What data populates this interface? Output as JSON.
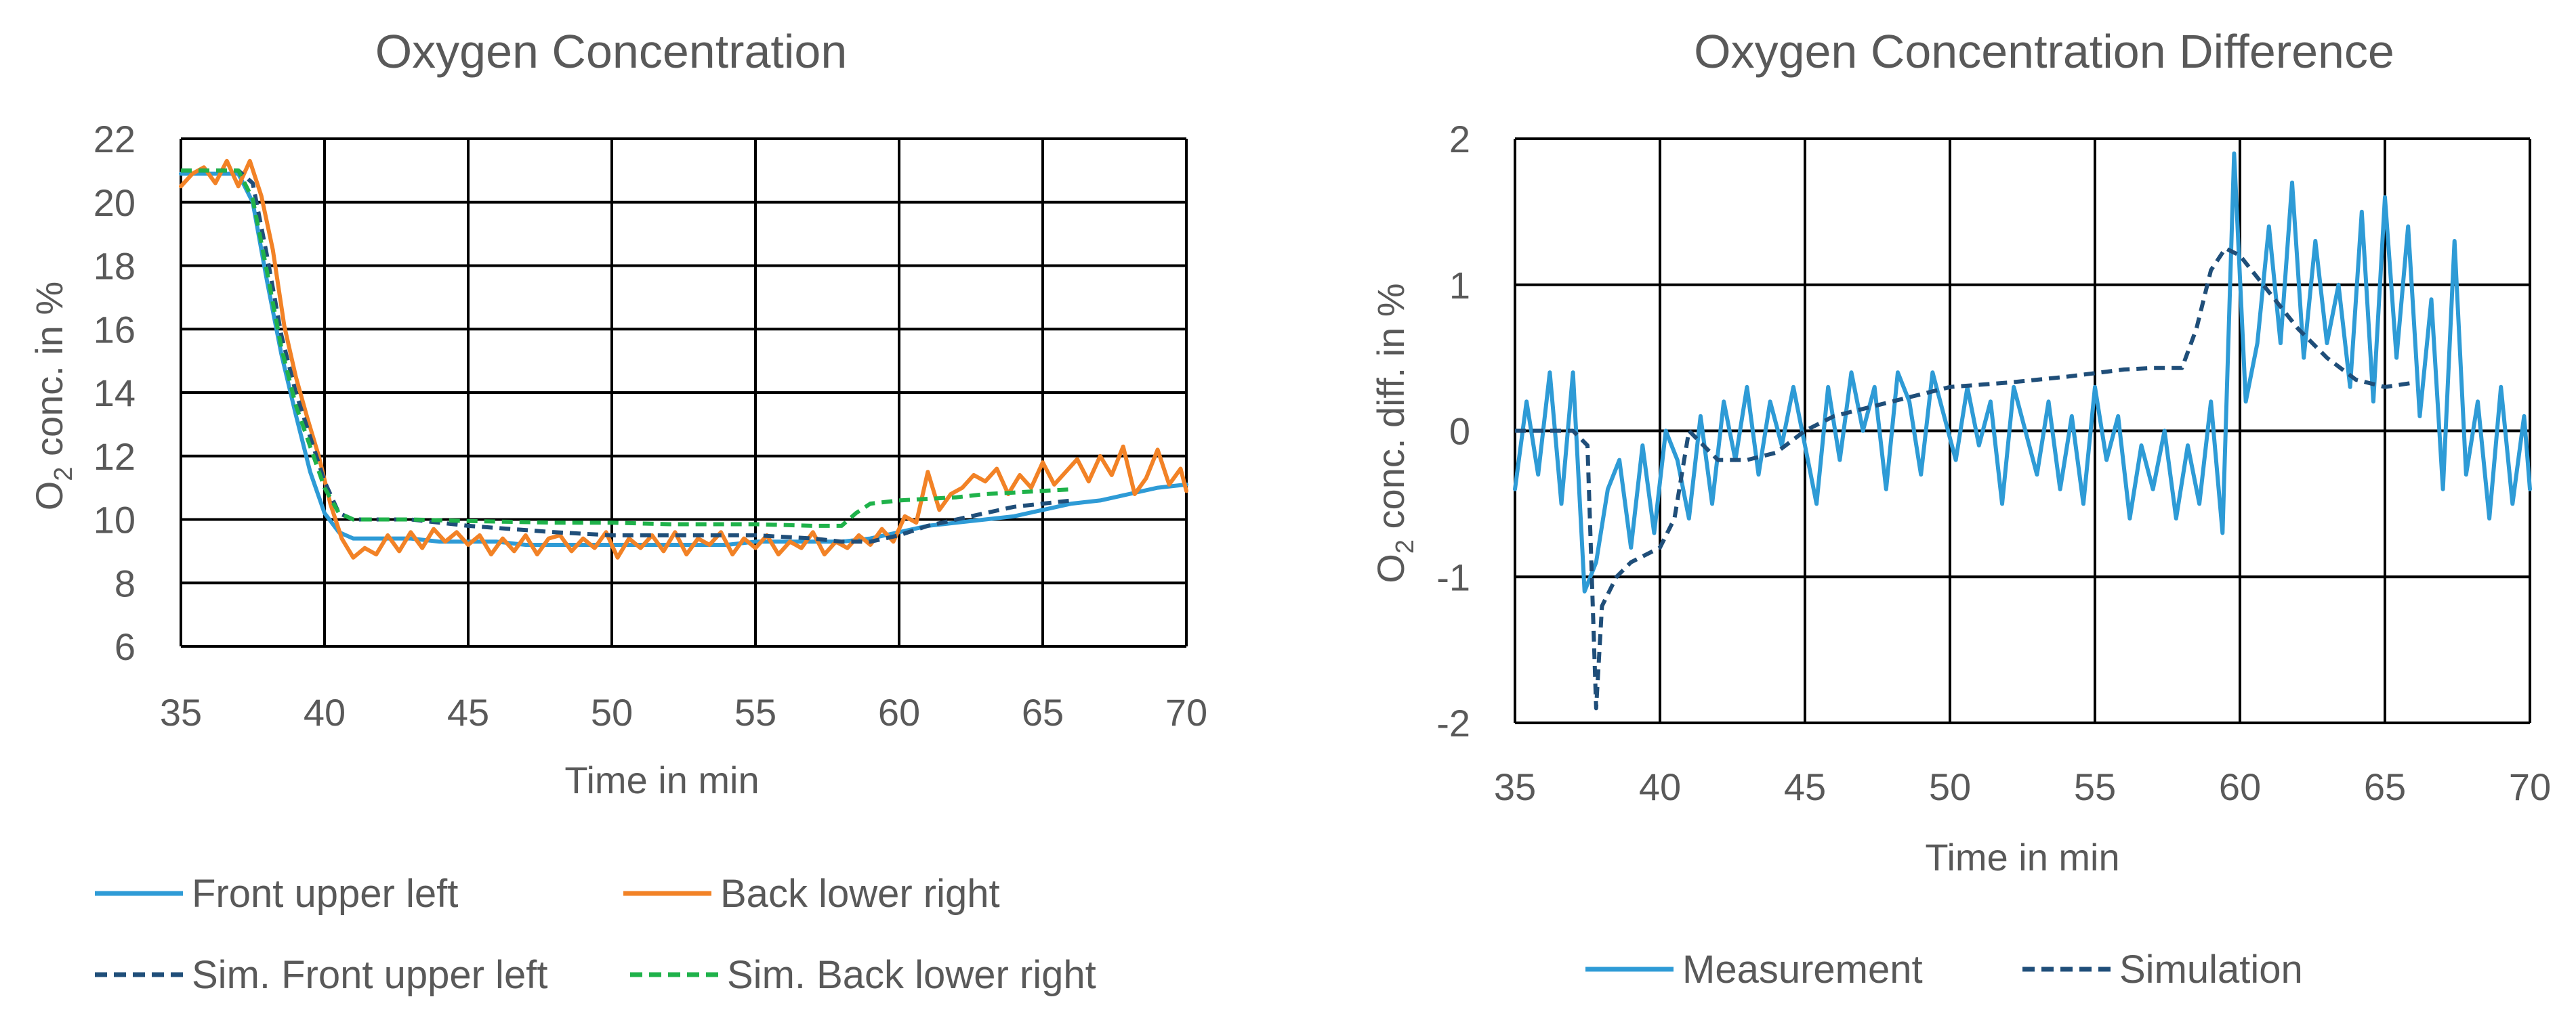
{
  "chart_data": [
    {
      "type": "line",
      "title": "Oxygen Concentration",
      "xlabel": "Time in min",
      "ylabel_main": "O",
      "ylabel_sub": "2",
      "ylabel_rest": " conc. in %",
      "xlim": [
        35,
        70
      ],
      "ylim": [
        6,
        22
      ],
      "xticks": [
        35,
        40,
        45,
        50,
        55,
        60,
        65,
        70
      ],
      "yticks": [
        6,
        8,
        10,
        12,
        14,
        16,
        18,
        20,
        22
      ],
      "grid": true,
      "legend_position": "bottom",
      "series": [
        {
          "name": "Front upper left",
          "color": "#2e9bd6",
          "dash": false,
          "x": [
            35,
            36,
            37,
            37.5,
            38,
            38.5,
            39,
            39.5,
            40,
            40.5,
            41,
            42,
            43,
            44,
            45,
            46,
            47,
            48,
            49,
            50,
            51,
            52,
            53,
            54,
            55,
            56,
            57,
            58,
            59,
            60,
            61,
            62,
            63,
            64,
            65,
            66,
            67,
            68,
            69,
            70
          ],
          "y": [
            20.9,
            20.9,
            20.9,
            20,
            17.5,
            15.2,
            13.3,
            11.5,
            10.2,
            9.6,
            9.4,
            9.4,
            9.4,
            9.3,
            9.3,
            9.3,
            9.2,
            9.2,
            9.2,
            9.2,
            9.2,
            9.2,
            9.2,
            9.2,
            9.3,
            9.3,
            9.3,
            9.3,
            9.4,
            9.6,
            9.8,
            9.9,
            10,
            10.1,
            10.3,
            10.5,
            10.6,
            10.8,
            11,
            11.1
          ]
        },
        {
          "name": "Back lower right",
          "color": "#f28226",
          "dash": false,
          "x": [
            35,
            35.4,
            35.8,
            36.2,
            36.6,
            37,
            37.4,
            37.8,
            38.2,
            38.6,
            39,
            39.4,
            39.8,
            40.2,
            40.6,
            41,
            41.4,
            41.8,
            42.2,
            42.6,
            43,
            43.4,
            43.8,
            44.2,
            44.6,
            45,
            45.4,
            45.8,
            46.2,
            46.6,
            47,
            47.4,
            47.8,
            48.2,
            48.6,
            49,
            49.4,
            49.8,
            50.2,
            50.6,
            51,
            51.4,
            51.8,
            52.2,
            52.6,
            53,
            53.4,
            53.8,
            54.2,
            54.6,
            55,
            55.4,
            55.8,
            56.2,
            56.6,
            57,
            57.4,
            57.8,
            58.2,
            58.6,
            59,
            59.4,
            59.8,
            60.2,
            60.6,
            61,
            61.4,
            61.8,
            62.2,
            62.6,
            63,
            63.4,
            63.8,
            64.2,
            64.6,
            65,
            65.4,
            65.8,
            66.2,
            66.6,
            67,
            67.4,
            67.8,
            68.2,
            68.6,
            69,
            69.4,
            69.8,
            70
          ],
          "y": [
            20.5,
            20.9,
            21.1,
            20.6,
            21.3,
            20.5,
            21.3,
            20.2,
            18.5,
            16.1,
            14.5,
            13.2,
            12,
            10.5,
            9.4,
            8.8,
            9.1,
            8.9,
            9.5,
            9,
            9.6,
            9.1,
            9.7,
            9.3,
            9.6,
            9.2,
            9.5,
            8.9,
            9.4,
            9,
            9.5,
            8.9,
            9.4,
            9.5,
            9,
            9.4,
            9.1,
            9.6,
            8.8,
            9.4,
            9.1,
            9.5,
            9,
            9.6,
            8.9,
            9.4,
            9.2,
            9.6,
            8.9,
            9.4,
            9.1,
            9.5,
            8.9,
            9.3,
            9.1,
            9.6,
            8.9,
            9.3,
            9.1,
            9.5,
            9.2,
            9.7,
            9.3,
            10.1,
            9.9,
            11.5,
            10.3,
            10.8,
            11,
            11.4,
            11.2,
            11.6,
            10.8,
            11.4,
            11,
            11.8,
            11.1,
            11.5,
            11.9,
            11.2,
            12,
            11.4,
            12.3,
            10.8,
            11.3,
            12.2,
            11.1,
            11.6,
            10.9
          ]
        },
        {
          "name": "Sim. Front upper left",
          "color": "#1f4e79",
          "dash": true,
          "x": [
            35,
            37,
            37.5,
            38,
            38.5,
            39,
            39.5,
            40,
            40.5,
            41,
            42,
            43,
            45,
            48,
            50,
            52,
            55,
            57,
            58,
            59,
            60,
            61,
            62,
            63,
            64,
            65,
            66
          ],
          "y": [
            21,
            21,
            20.6,
            18.3,
            15.8,
            14,
            12.6,
            11.2,
            10.2,
            10,
            10,
            10,
            9.8,
            9.6,
            9.5,
            9.5,
            9.5,
            9.4,
            9.3,
            9.3,
            9.5,
            9.8,
            10,
            10.2,
            10.4,
            10.5,
            10.6
          ]
        },
        {
          "name": "Sim. Back lower right",
          "color": "#1fb24a",
          "dash": true,
          "x": [
            35,
            37,
            37.5,
            38,
            38.5,
            39,
            39.5,
            40,
            40.5,
            41,
            43,
            45,
            48,
            50,
            52,
            55,
            57,
            58,
            58.5,
            59,
            60,
            61,
            62,
            63,
            64,
            65,
            66
          ],
          "y": [
            21,
            21,
            20.1,
            17.8,
            15.4,
            13.6,
            12.3,
            11,
            10.2,
            10,
            10,
            9.95,
            9.9,
            9.9,
            9.85,
            9.85,
            9.8,
            9.8,
            10.2,
            10.5,
            10.6,
            10.65,
            10.7,
            10.8,
            10.85,
            10.9,
            10.95
          ]
        }
      ]
    },
    {
      "type": "line",
      "title": "Oxygen Concentration Difference",
      "xlabel": "Time in min",
      "ylabel_main": "O",
      "ylabel_sub": "2",
      "ylabel_rest": " conc. diff. in %",
      "xlim": [
        35,
        70
      ],
      "ylim": [
        -2,
        2
      ],
      "xticks": [
        35,
        40,
        45,
        50,
        55,
        60,
        65,
        70
      ],
      "yticks": [
        -2,
        -1,
        0,
        1,
        2
      ],
      "grid": true,
      "legend_position": "bottom",
      "series": [
        {
          "name": "Measurement",
          "color": "#2e9bd6",
          "dash": false,
          "x": [
            35,
            35.4,
            35.8,
            36.2,
            36.6,
            37,
            37.4,
            37.8,
            38.2,
            38.6,
            39,
            39.4,
            39.8,
            40.2,
            40.6,
            41,
            41.4,
            41.8,
            42.2,
            42.6,
            43,
            43.4,
            43.8,
            44.2,
            44.6,
            45,
            45.4,
            45.8,
            46.2,
            46.6,
            47,
            47.4,
            47.8,
            48.2,
            48.6,
            49,
            49.4,
            49.8,
            50.2,
            50.6,
            51,
            51.4,
            51.8,
            52.2,
            52.6,
            53,
            53.4,
            53.8,
            54.2,
            54.6,
            55,
            55.4,
            55.8,
            56.2,
            56.6,
            57,
            57.4,
            57.8,
            58.2,
            58.6,
            59,
            59.4,
            59.8,
            60.2,
            60.6,
            61,
            61.4,
            61.8,
            62.2,
            62.6,
            63,
            63.4,
            63.8,
            64.2,
            64.6,
            65,
            65.4,
            65.8,
            66.2,
            66.6,
            67,
            67.4,
            67.8,
            68.2,
            68.6,
            69,
            69.4,
            69.8,
            70
          ],
          "y": [
            -0.4,
            0.2,
            -0.3,
            0.4,
            -0.5,
            0.4,
            -1.1,
            -0.9,
            -0.4,
            -0.2,
            -0.8,
            -0.1,
            -0.7,
            0,
            -0.2,
            -0.6,
            0.1,
            -0.5,
            0.2,
            -0.2,
            0.3,
            -0.3,
            0.2,
            -0.1,
            0.3,
            -0.1,
            -0.5,
            0.3,
            -0.2,
            0.4,
            0,
            0.3,
            -0.4,
            0.4,
            0.2,
            -0.3,
            0.4,
            0.1,
            -0.2,
            0.3,
            -0.1,
            0.2,
            -0.5,
            0.3,
            0,
            -0.3,
            0.2,
            -0.4,
            0.1,
            -0.5,
            0.3,
            -0.2,
            0.1,
            -0.6,
            -0.1,
            -0.4,
            0,
            -0.6,
            -0.1,
            -0.5,
            0.2,
            -0.7,
            1.9,
            0.2,
            0.6,
            1.4,
            0.6,
            1.7,
            0.5,
            1.3,
            0.6,
            1,
            0.3,
            1.5,
            0.2,
            1.6,
            0.5,
            1.4,
            0.1,
            0.9,
            -0.4,
            1.3,
            -0.3,
            0.2,
            -0.6,
            0.3,
            -0.5,
            0.1,
            -0.4
          ]
        },
        {
          "name": "Simulation",
          "color": "#1f4e79",
          "dash": true,
          "x": [
            35,
            37,
            37.5,
            37.8,
            38,
            38.5,
            39,
            40,
            40.5,
            41,
            42,
            43,
            44,
            45,
            46,
            48,
            50,
            52,
            54,
            56,
            57,
            58,
            58.5,
            59,
            59.5,
            60,
            61,
            62,
            63,
            64,
            65,
            66
          ],
          "y": [
            0,
            0,
            -0.1,
            -1.9,
            -1.2,
            -1,
            -0.9,
            -0.8,
            -0.6,
            0,
            -0.2,
            -0.2,
            -0.15,
            0,
            0.1,
            0.2,
            0.3,
            0.33,
            0.37,
            0.42,
            0.43,
            0.43,
            0.7,
            1.1,
            1.25,
            1.2,
            0.95,
            0.7,
            0.5,
            0.35,
            0.3,
            0.33
          ]
        }
      ]
    }
  ]
}
